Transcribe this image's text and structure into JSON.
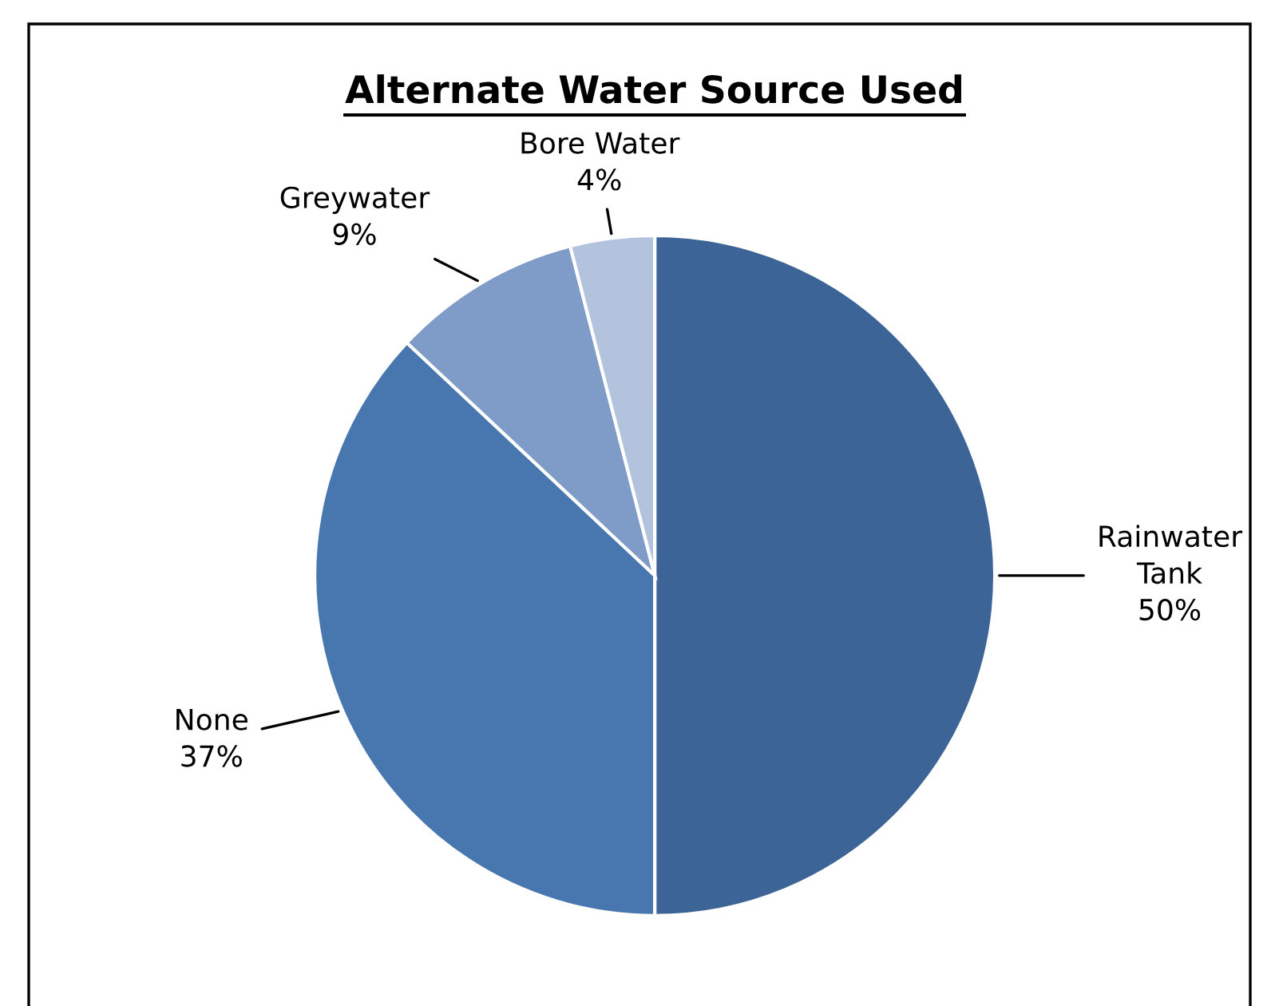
{
  "chart_data": {
    "type": "pie",
    "title": "Alternate Water Source Used",
    "categories": [
      "Rainwater Tank",
      "None",
      "Greywater",
      "Bore Water"
    ],
    "values": [
      50,
      37,
      9,
      4
    ],
    "colors": [
      "#3d6496",
      "#4877b0",
      "#7f9cc8",
      "#b3c2dd"
    ],
    "value_labels": [
      "50%",
      "37%",
      "9%",
      "4%"
    ],
    "legend": false
  }
}
